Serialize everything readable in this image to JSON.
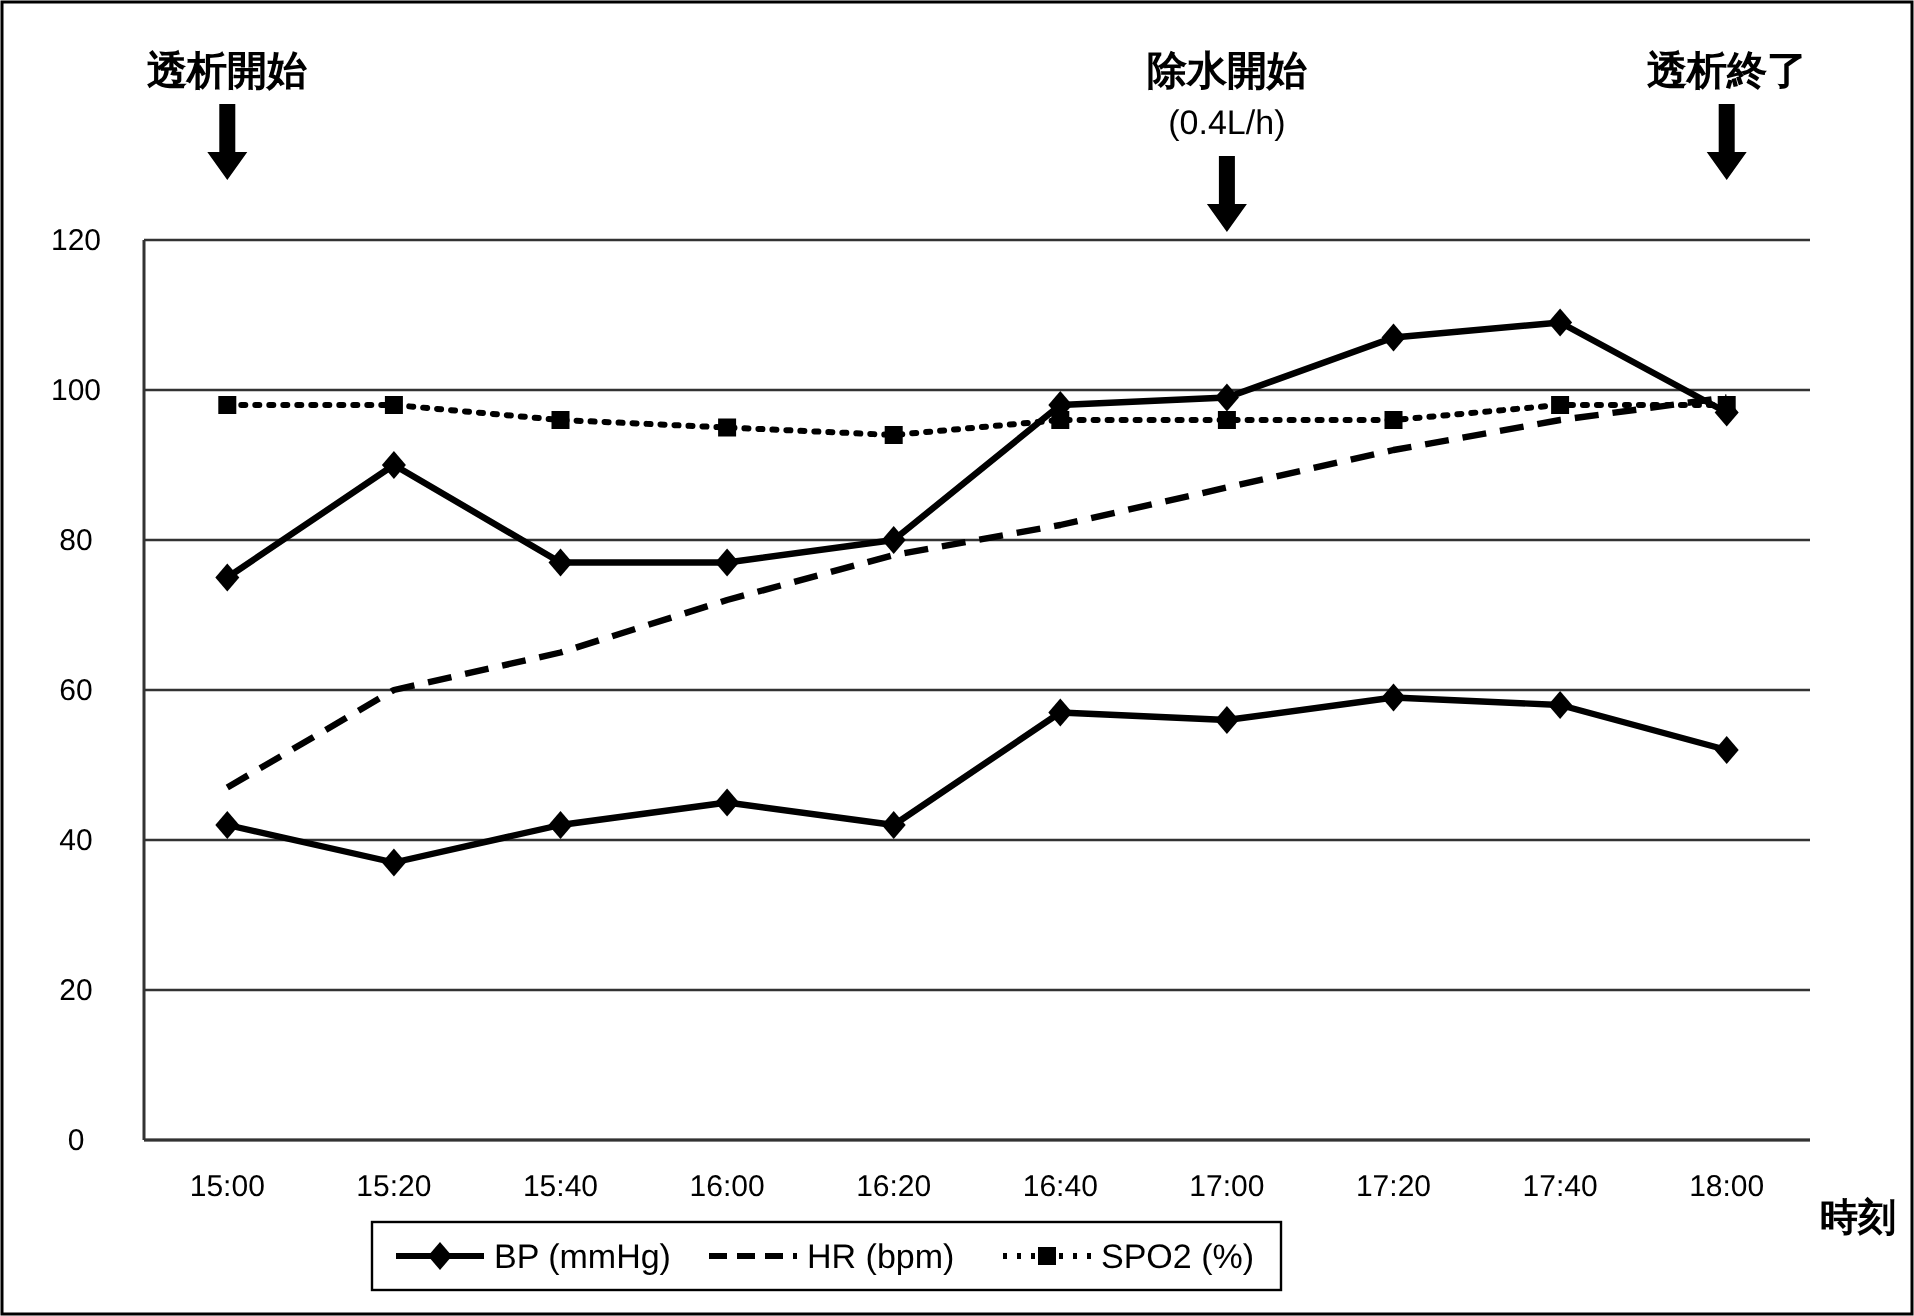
{
  "chart_data": {
    "type": "line",
    "xlabel": "時刻",
    "categories": [
      "15:00",
      "15:20",
      "15:40",
      "16:00",
      "16:20",
      "16:40",
      "17:00",
      "17:20",
      "17:40",
      "18:00"
    ],
    "series": [
      {
        "name": "BP (mmHg)",
        "color": "#000000",
        "marker": "diamond",
        "line_style": "solid",
        "values": [
          75,
          90,
          77,
          77,
          80,
          98,
          99,
          107,
          109,
          97
        ]
      },
      {
        "color": "#000000",
        "marker": "diamond",
        "line_style": "solid",
        "values": [
          42,
          37,
          42,
          45,
          42,
          57,
          56,
          59,
          58,
          52
        ]
      },
      {
        "name": "HR (bpm)",
        "color": "#000000",
        "marker": "none",
        "line_style": "dashed",
        "values": [
          47,
          60,
          65,
          72,
          78,
          82,
          87,
          92,
          96,
          99
        ]
      },
      {
        "name": "SPO2 (%)",
        "color": "#000000",
        "marker": "square",
        "line_style": "dotted",
        "values": [
          98,
          98,
          96,
          95,
          94,
          96,
          96,
          96,
          98,
          98
        ]
      }
    ],
    "ylim": [
      0,
      120
    ],
    "yticks": [
      0,
      20,
      40,
      60,
      80,
      100,
      120
    ],
    "grid": "y",
    "legend": "bottom",
    "annotations": [
      "透析開始",
      "除水開始\n(0.4L/h)",
      "透析終了"
    ]
  }
}
